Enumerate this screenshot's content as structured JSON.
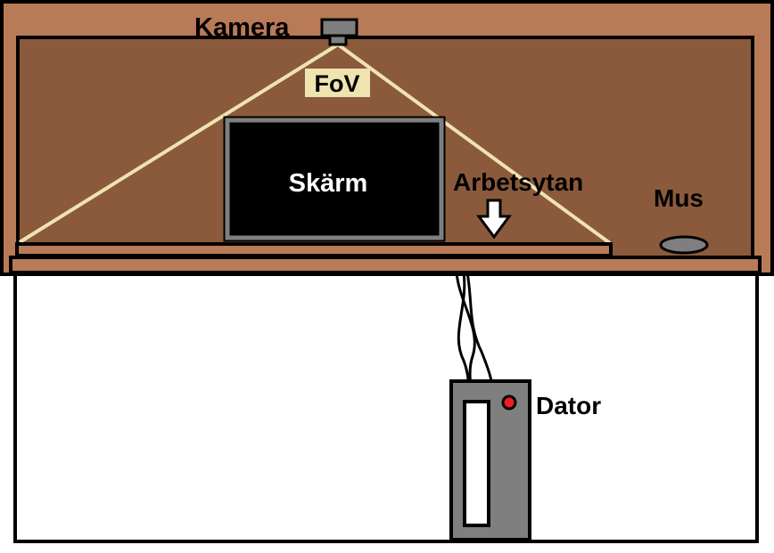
{
  "labels": {
    "camera": "Kamera",
    "fov": "FoV",
    "screen": "Skärm",
    "work_surface": "Arbetsytan",
    "mouse": "Mus",
    "computer": "Dator"
  },
  "colors": {
    "room_outer": "#b97a57",
    "room_inner": "#8b5a3c",
    "outline": "#000000",
    "fov_lines": "#efe4b0",
    "fov_label_bg": "#efe4b0",
    "camera_body": "#7f7f7f",
    "screen_frame": "#7f7f7f",
    "screen_fill": "#000000",
    "screen_text": "#ffffff",
    "desk_surface": "#b97a57",
    "work_surface": "#8b5a3c",
    "computer_case": "#7f7f7f",
    "power_light": "#ed1c24",
    "drive_slot": "#ffffff",
    "floor": "#ffffff"
  }
}
